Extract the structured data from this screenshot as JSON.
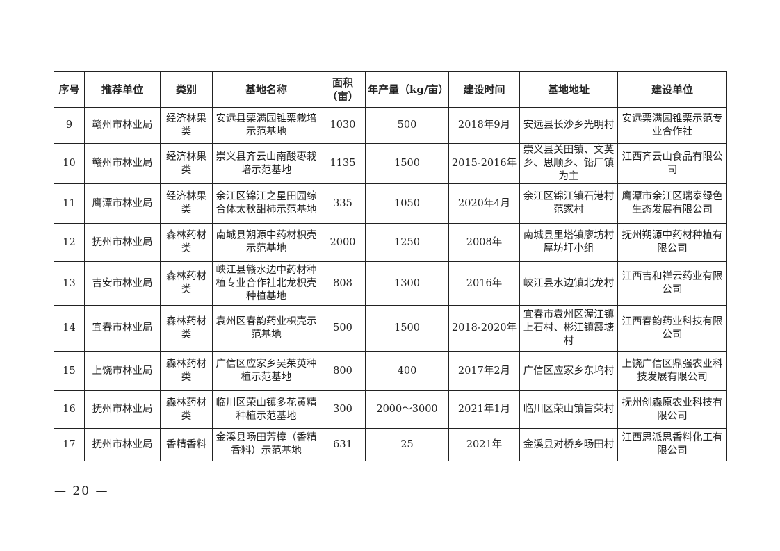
{
  "table": {
    "headers": [
      "序号",
      "推荐单位",
      "类别",
      "基地名称",
      "面积（亩）",
      "年产量（kg/亩）",
      "建设时间",
      "基地地址",
      "建设单位"
    ],
    "rows": [
      [
        "9",
        "赣州市林业局",
        "经济林果类",
        "安远县栗满园锥栗栽培示范基地",
        "1030",
        "500",
        "2018年9月",
        "安远县长沙乡光明村",
        "安远栗满园锥栗示范专业合作社"
      ],
      [
        "10",
        "赣州市林业局",
        "经济林果类",
        "崇义县齐云山南酸枣栽培示范基地",
        "1135",
        "1500",
        "2015-2016年",
        "崇义县关田镇、文英乡、思顺乡、铅厂镇为主",
        "江西齐云山食品有限公司"
      ],
      [
        "11",
        "鹰潭市林业局",
        "经济林果类",
        "余江区锦江之星田园综合体太秋甜柿示范基地",
        "335",
        "1050",
        "2020年4月",
        "余江区锦江镇石港村范家村",
        "鹰潭市余江区瑞泰绿色生态发展有限公司"
      ],
      [
        "12",
        "抚州市林业局",
        "森林药材类",
        "南城县朔源中药材枳壳示范基地",
        "2000",
        "1250",
        "2008年",
        "南城县里塔镇廖坊村厚坊圩小组",
        "抚州朔源中药材种植有限公司"
      ],
      [
        "13",
        "吉安市林业局",
        "森林药材类",
        "峡江县赣水边中药材种植专业合作社北龙枳壳种植基地",
        "808",
        "1300",
        "2016年",
        "峡江县水边镇北龙村",
        "江西吉和祥云药业有限公司"
      ],
      [
        "14",
        "宜春市林业局",
        "森林药材类",
        "袁州区春韵药业枳壳示范基地",
        "500",
        "1500",
        "2018-2020年",
        "宜春市袁州区渥江镇上石村、彬江镇霞塘村",
        "江西春韵药业科技有限公司"
      ],
      [
        "15",
        "上饶市林业局",
        "森林药材类",
        "广信区应家乡吴茱萸种植示范基地",
        "800",
        "400",
        "2017年2月",
        "广信区应家乡东坞村",
        "上饶广信区鼎强农业科技发展有限公司"
      ],
      [
        "16",
        "抚州市林业局",
        "森林药材类",
        "临川区荣山镇多花黄精种植示范基地",
        "300",
        "2000～3000",
        "2021年1月",
        "临川区荣山镇旨荣村",
        "抚州创森原农业科技有限公司"
      ],
      [
        "17",
        "抚州市林业局",
        "香精香料",
        "金溪县旸田芳樟（香精香料）示范基地",
        "631",
        "25",
        "2021年",
        "金溪县对桥乡旸田村",
        "江西思派思香料化工有限公司"
      ]
    ]
  },
  "page_number": "— 20 —"
}
